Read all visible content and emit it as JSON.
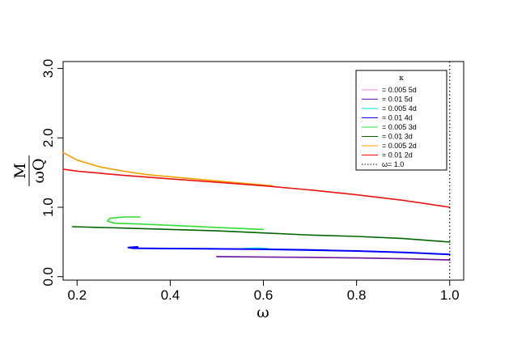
{
  "chart_data": {
    "type": "line",
    "title": "",
    "xlabel": "ω",
    "ylabel_numerator": "M",
    "ylabel_denominator": "ωQ",
    "xlim": [
      0.17,
      1.03
    ],
    "ylim": [
      -0.05,
      3.1
    ],
    "x_ticks": [
      "0.2",
      "0.4",
      "0.6",
      "0.8",
      "1.0"
    ],
    "x_tick_values": [
      0.2,
      0.4,
      0.6,
      0.8,
      1.0
    ],
    "y_ticks": [
      "0.0",
      "1.0",
      "2.0",
      "3.0"
    ],
    "y_tick_values": [
      0.0,
      1.0,
      2.0,
      3.0
    ],
    "grid": false,
    "legend_position": "top-right",
    "legend_title": "κ",
    "series": [
      {
        "name": "= 0.005 5d",
        "color": "#ee82ee",
        "x": [
          0.5,
          0.6,
          0.7,
          0.8,
          0.9,
          1.0
        ],
        "y": [
          0.29,
          0.285,
          0.28,
          0.27,
          0.26,
          0.24
        ]
      },
      {
        "name": "= 0.01   5d",
        "color": "#6a1b9a",
        "x": [
          0.5,
          0.6,
          0.7,
          0.8,
          0.9,
          1.0
        ],
        "y": [
          0.29,
          0.283,
          0.277,
          0.27,
          0.258,
          0.24
        ]
      },
      {
        "name": "= 0.005 4d",
        "color": "#00e5ee",
        "x": [
          0.555,
          0.57,
          0.585,
          0.6,
          0.61
        ],
        "y": [
          0.4,
          0.405,
          0.41,
          0.405,
          0.4
        ]
      },
      {
        "name": "= 0.01   4d",
        "color": "#0000ff",
        "x": [
          0.33,
          0.31,
          0.32,
          0.4,
          0.5,
          0.6,
          0.7,
          0.74,
          0.6,
          0.8,
          0.9,
          1.0
        ],
        "y": [
          0.43,
          0.42,
          0.41,
          0.405,
          0.4,
          0.395,
          0.385,
          0.38,
          0.395,
          0.37,
          0.35,
          0.32
        ]
      },
      {
        "name": "= 0.005 3d",
        "color": "#33dd33",
        "x": [
          0.335,
          0.3,
          0.27,
          0.265,
          0.28,
          0.33,
          0.4,
          0.5,
          0.6
        ],
        "y": [
          0.86,
          0.86,
          0.84,
          0.8,
          0.77,
          0.76,
          0.74,
          0.71,
          0.68
        ]
      },
      {
        "name": "= 0.01   3d",
        "color": "#006400",
        "x": [
          0.19,
          0.3,
          0.4,
          0.5,
          0.6,
          0.7,
          0.8,
          0.9,
          1.0
        ],
        "y": [
          0.72,
          0.7,
          0.68,
          0.66,
          0.63,
          0.6,
          0.58,
          0.55,
          0.5
        ]
      },
      {
        "name": "= 0.005 2d",
        "color": "#f0a000",
        "x": [
          0.17,
          0.2,
          0.25,
          0.3,
          0.35,
          0.4,
          0.45,
          0.5,
          0.55,
          0.6,
          0.62
        ],
        "y": [
          1.79,
          1.68,
          1.58,
          1.52,
          1.47,
          1.44,
          1.41,
          1.38,
          1.35,
          1.32,
          1.31
        ]
      },
      {
        "name": "= 0.01   2d",
        "color": "#ee1111",
        "x": [
          0.17,
          0.2,
          0.3,
          0.4,
          0.5,
          0.6,
          0.7,
          0.8,
          0.9,
          1.0
        ],
        "y": [
          1.55,
          1.52,
          1.46,
          1.41,
          1.36,
          1.31,
          1.25,
          1.18,
          1.1,
          1.0
        ]
      }
    ],
    "vertical_line": {
      "name": "ω= 1.0",
      "x": 1.0,
      "color": "#000000",
      "style": "dotted"
    }
  }
}
